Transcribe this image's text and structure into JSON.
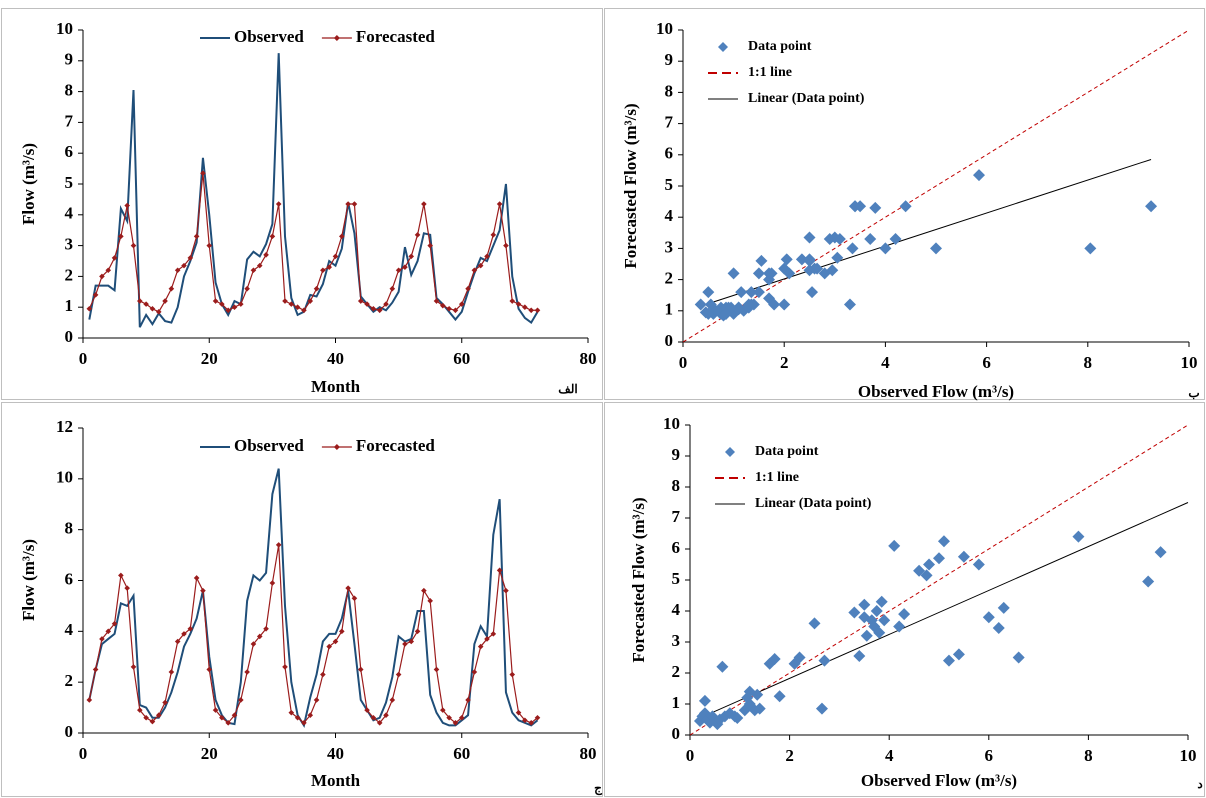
{
  "chart_data": [
    {
      "type": "line",
      "x_label": "Month",
      "y_label": "Flow (m³/s)",
      "panel_label": "الف",
      "xlim": [
        0,
        80
      ],
      "xticks": [
        0,
        20,
        40,
        60,
        80
      ],
      "ylim": [
        0,
        10
      ],
      "yticks": [
        0,
        1,
        2,
        3,
        4,
        5,
        6,
        7,
        8,
        9,
        10
      ],
      "x": [
        1,
        2,
        3,
        4,
        5,
        6,
        7,
        8,
        9,
        10,
        11,
        12,
        13,
        14,
        15,
        16,
        17,
        18,
        19,
        20,
        21,
        22,
        23,
        24,
        25,
        26,
        27,
        28,
        29,
        30,
        31,
        32,
        33,
        34,
        35,
        36,
        37,
        38,
        39,
        40,
        41,
        42,
        43,
        44,
        45,
        46,
        47,
        48,
        49,
        50,
        51,
        52,
        53,
        54,
        55,
        56,
        57,
        58,
        59,
        60,
        61,
        62,
        63,
        64,
        65,
        66,
        67,
        68,
        69,
        70,
        71,
        72
      ],
      "series": [
        {
          "name": "Observed",
          "color": "#1f4e79",
          "marker": "none",
          "values": [
            0.6,
            1.7,
            1.7,
            1.7,
            1.55,
            4.2,
            3.8,
            8.05,
            0.35,
            0.75,
            0.45,
            0.8,
            0.55,
            0.5,
            1.0,
            2.0,
            2.5,
            3.1,
            5.85,
            4.0,
            1.8,
            1.1,
            0.75,
            1.2,
            1.1,
            2.55,
            2.8,
            2.65,
            3.05,
            3.7,
            9.25,
            3.3,
            1.3,
            0.75,
            0.85,
            1.4,
            1.35,
            1.75,
            2.5,
            2.35,
            2.9,
            4.4,
            3.4,
            1.35,
            1.1,
            0.85,
            1.0,
            0.9,
            1.15,
            1.5,
            2.95,
            2.05,
            2.5,
            3.4,
            3.35,
            1.3,
            1.1,
            0.85,
            0.6,
            0.85,
            1.5,
            2.1,
            2.6,
            2.5,
            3.0,
            3.5,
            5.0,
            2.0,
            0.95,
            0.65,
            0.5,
            0.85
          ]
        },
        {
          "name": "Forecasted",
          "color": "#9b1c1c",
          "marker": "diamond",
          "values": [
            0.95,
            1.4,
            2.0,
            2.2,
            2.6,
            3.3,
            4.3,
            3.0,
            1.2,
            1.1,
            0.95,
            0.85,
            1.2,
            1.6,
            2.2,
            2.35,
            2.6,
            3.3,
            5.35,
            3.0,
            1.2,
            1.1,
            0.9,
            1.0,
            1.1,
            1.6,
            2.2,
            2.35,
            2.7,
            3.3,
            4.35,
            1.2,
            1.1,
            1.0,
            0.9,
            1.2,
            1.6,
            2.2,
            2.3,
            2.65,
            3.3,
            4.35,
            4.35,
            1.2,
            1.1,
            0.95,
            0.9,
            1.1,
            1.6,
            2.2,
            2.3,
            2.65,
            3.35,
            4.35,
            3.0,
            1.2,
            1.05,
            0.95,
            0.9,
            1.1,
            1.6,
            2.2,
            2.35,
            2.65,
            3.35,
            4.35,
            3.0,
            1.2,
            1.1,
            1.0,
            0.9,
            0.9
          ]
        }
      ]
    },
    {
      "type": "scatter",
      "x_label": "Observed Flow (m³/s)",
      "y_label": "Forecasted Flow (m³/s)",
      "panel_label": "ب",
      "xlim": [
        0,
        10
      ],
      "xticks": [
        0,
        2,
        4,
        6,
        8,
        10
      ],
      "ylim": [
        0,
        10
      ],
      "yticks": [
        0,
        1,
        2,
        3,
        4,
        5,
        6,
        7,
        8,
        9,
        10
      ],
      "series": [
        {
          "name": "Data point",
          "color": "#4f81bd",
          "x": [
            0.6,
            1.7,
            1.7,
            1.7,
            1.55,
            4.2,
            3.8,
            8.05,
            0.35,
            0.75,
            0.45,
            0.8,
            0.55,
            0.5,
            1.0,
            2.0,
            2.5,
            3.1,
            5.85,
            4.0,
            1.8,
            1.1,
            0.75,
            1.2,
            1.1,
            2.55,
            2.8,
            2.65,
            3.05,
            3.7,
            9.25,
            3.3,
            1.3,
            0.75,
            0.85,
            1.4,
            1.35,
            1.75,
            2.5,
            2.35,
            2.9,
            4.4,
            3.4,
            1.35,
            1.1,
            0.85,
            1.0,
            0.9,
            1.15,
            1.5,
            2.95,
            2.05,
            2.5,
            3.4,
            3.35,
            1.3,
            1.1,
            0.85,
            0.6,
            0.85,
            1.5,
            2.1,
            2.6,
            2.5,
            3.0,
            3.5,
            5.0,
            2.0,
            0.95,
            0.65,
            0.5,
            0.85
          ],
          "y": [
            0.95,
            1.4,
            2.0,
            2.2,
            2.6,
            3.3,
            4.3,
            3.0,
            1.2,
            1.1,
            0.95,
            0.85,
            1.2,
            1.6,
            2.2,
            2.35,
            2.6,
            3.3,
            5.35,
            3.0,
            1.2,
            1.1,
            0.9,
            1.0,
            1.1,
            1.6,
            2.2,
            2.35,
            2.7,
            3.3,
            4.35,
            1.2,
            1.1,
            1.0,
            0.9,
            1.2,
            1.6,
            2.2,
            2.3,
            2.65,
            3.3,
            4.35,
            4.35,
            1.2,
            1.1,
            0.95,
            0.9,
            1.1,
            1.6,
            2.2,
            2.3,
            2.65,
            3.35,
            4.35,
            3.0,
            1.2,
            1.05,
            0.95,
            0.9,
            1.1,
            1.6,
            2.2,
            2.35,
            2.65,
            3.35,
            4.35,
            3.0,
            1.2,
            1.1,
            1.0,
            0.9,
            0.9
          ]
        }
      ],
      "reference_line": {
        "name": "1:1 line",
        "color": "#c00000"
      },
      "trendline": {
        "name": "Linear (Data point)",
        "color": "#000000",
        "x": [
          0.35,
          9.25
        ],
        "y": [
          1.15,
          5.85
        ]
      }
    },
    {
      "type": "line",
      "x_label": "Month",
      "y_label": "Flow (m³/s)",
      "panel_label": "ج",
      "xlim": [
        0,
        80
      ],
      "xticks": [
        0,
        20,
        40,
        60,
        80
      ],
      "ylim": [
        0,
        12
      ],
      "yticks": [
        0,
        2,
        4,
        6,
        8,
        10,
        12
      ],
      "x": [
        1,
        2,
        3,
        4,
        5,
        6,
        7,
        8,
        9,
        10,
        11,
        12,
        13,
        14,
        15,
        16,
        17,
        18,
        19,
        20,
        21,
        22,
        23,
        24,
        25,
        26,
        27,
        28,
        29,
        30,
        31,
        32,
        33,
        34,
        35,
        36,
        37,
        38,
        39,
        40,
        41,
        42,
        43,
        44,
        45,
        46,
        47,
        48,
        49,
        50,
        51,
        52,
        53,
        54,
        55,
        56,
        57,
        58,
        59,
        60,
        61,
        62,
        63,
        64,
        65,
        66,
        67,
        68,
        69,
        70,
        71,
        72
      ],
      "series": [
        {
          "name": "Observed",
          "color": "#1f4e79",
          "marker": "none",
          "values": [
            1.3,
            2.5,
            3.5,
            3.7,
            3.9,
            5.1,
            5.0,
            5.4,
            1.1,
            1.0,
            0.6,
            0.6,
            1.0,
            1.6,
            2.4,
            3.4,
            3.9,
            4.5,
            5.6,
            3.0,
            1.3,
            0.7,
            0.4,
            0.35,
            2.0,
            5.2,
            6.2,
            6.0,
            6.3,
            9.4,
            10.4,
            5.0,
            2.0,
            0.7,
            0.3,
            1.4,
            2.3,
            3.6,
            3.9,
            3.9,
            4.5,
            5.6,
            3.5,
            1.3,
            0.9,
            0.5,
            0.6,
            1.2,
            2.2,
            3.8,
            3.6,
            3.7,
            4.8,
            4.8,
            1.5,
            0.8,
            0.4,
            0.3,
            0.3,
            0.5,
            0.7,
            3.5,
            4.2,
            3.8,
            7.8,
            9.2,
            1.6,
            0.8,
            0.5,
            0.4,
            0.3,
            0.5
          ]
        },
        {
          "name": "Forecasted",
          "color": "#9b1c1c",
          "marker": "diamond",
          "values": [
            1.3,
            2.5,
            3.7,
            4.0,
            4.3,
            6.2,
            5.7,
            2.6,
            0.9,
            0.6,
            0.45,
            0.7,
            1.2,
            2.4,
            3.6,
            3.9,
            4.1,
            6.1,
            5.6,
            2.5,
            0.9,
            0.6,
            0.4,
            0.7,
            1.3,
            2.4,
            3.5,
            3.8,
            4.1,
            5.9,
            7.4,
            2.6,
            0.8,
            0.6,
            0.4,
            0.7,
            1.3,
            2.3,
            3.4,
            3.6,
            4.0,
            5.7,
            5.3,
            2.5,
            0.9,
            0.6,
            0.4,
            0.7,
            1.3,
            2.3,
            3.5,
            3.6,
            4.0,
            5.6,
            5.2,
            2.5,
            0.9,
            0.6,
            0.4,
            0.6,
            1.3,
            2.4,
            3.4,
            3.7,
            3.9,
            6.4,
            5.6,
            2.3,
            0.8,
            0.5,
            0.4,
            0.6
          ]
        }
      ]
    },
    {
      "type": "scatter",
      "x_label": "Observed Flow (m³/s)",
      "y_label": "Forecasted Flow (m³/s)",
      "panel_label": "د",
      "xlim": [
        0,
        10
      ],
      "xticks": [
        0,
        2,
        4,
        6,
        8,
        10
      ],
      "ylim": [
        0,
        10
      ],
      "yticks": [
        0,
        1,
        2,
        3,
        4,
        5,
        6,
        7,
        8,
        9,
        10
      ],
      "series": [
        {
          "name": "Data point",
          "color": "#4f81bd",
          "x": [
            0.2,
            0.25,
            0.3,
            0.3,
            0.35,
            0.4,
            0.45,
            0.5,
            0.55,
            0.6,
            0.65,
            0.7,
            0.8,
            0.9,
            0.95,
            1.1,
            1.15,
            1.2,
            1.2,
            1.3,
            1.35,
            1.4,
            1.6,
            1.7,
            1.8,
            2.1,
            2.2,
            2.5,
            2.65,
            2.7,
            3.3,
            3.4,
            3.5,
            3.5,
            3.55,
            3.65,
            3.7,
            3.75,
            3.8,
            3.85,
            3.9,
            4.1,
            4.2,
            4.3,
            4.6,
            4.75,
            4.8,
            5.0,
            5.1,
            5.2,
            5.4,
            5.5,
            5.8,
            6.0,
            6.2,
            6.3,
            6.6,
            7.8,
            9.2,
            9.45
          ],
          "y": [
            0.45,
            0.6,
            0.7,
            1.1,
            0.5,
            0.4,
            0.6,
            0.45,
            0.35,
            0.5,
            2.2,
            0.6,
            0.7,
            0.6,
            0.55,
            0.8,
            1.2,
            1.4,
            1.0,
            0.8,
            1.3,
            0.85,
            2.3,
            2.45,
            1.25,
            2.3,
            2.5,
            3.6,
            0.85,
            2.4,
            3.95,
            2.55,
            3.8,
            4.2,
            3.2,
            3.7,
            3.5,
            4.0,
            3.3,
            4.3,
            3.7,
            6.1,
            3.5,
            3.9,
            5.3,
            5.15,
            5.5,
            5.7,
            6.25,
            2.4,
            2.6,
            5.75,
            5.5,
            3.8,
            3.45,
            4.1,
            2.5,
            6.4,
            4.95,
            5.9
          ]
        }
      ],
      "reference_line": {
        "name": "1:1 line",
        "color": "#c00000"
      },
      "trendline": {
        "name": "Linear (Data point)",
        "color": "#000000",
        "x": [
          0.2,
          10
        ],
        "y": [
          0.55,
          7.5
        ]
      }
    }
  ]
}
